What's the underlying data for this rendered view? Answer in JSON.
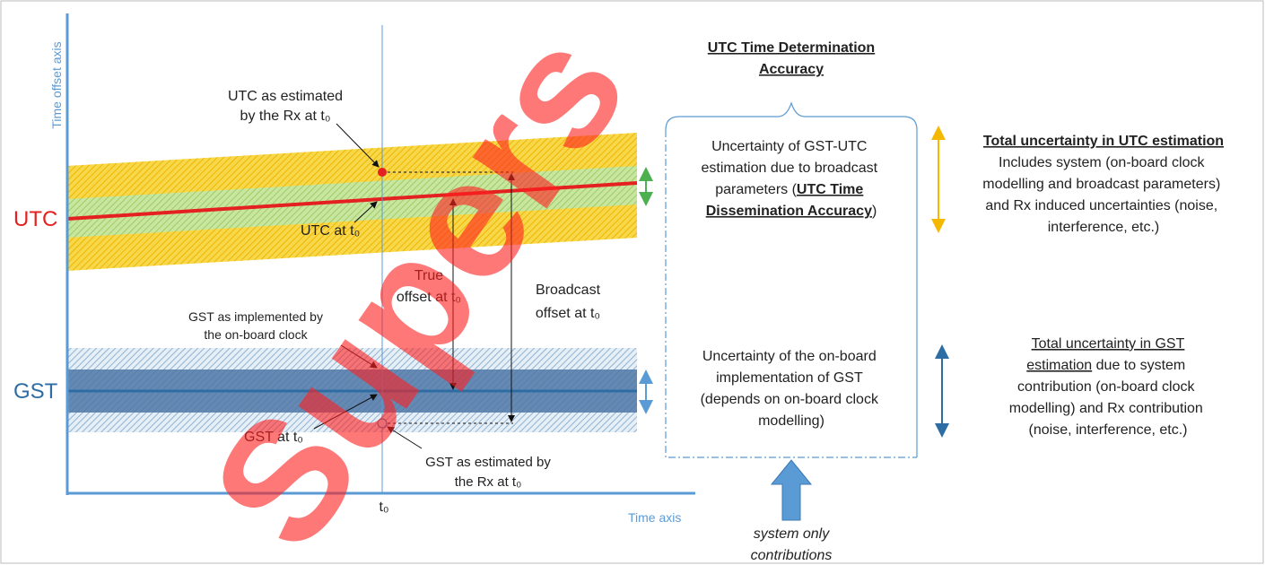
{
  "axes": {
    "y_label": "Time offset axis",
    "x_label": "Time axis",
    "t0": "t₀"
  },
  "scales": {
    "utc": "UTC",
    "gst": "GST"
  },
  "annotations": {
    "utc_estimated": [
      "UTC as estimated",
      "by the Rx at t₀"
    ],
    "utc_at_t0": "UTC at t₀",
    "true_offset": [
      "True",
      "offset at t₀"
    ],
    "broadcast_offset": [
      "Broadcast",
      "offset at t₀"
    ],
    "gst_implemented": [
      "GST as implemented by",
      "the on-board clock"
    ],
    "gst_at_t0": "GST at t₀",
    "gst_estimated": [
      "GST as estimated by",
      "the Rx at t₀"
    ]
  },
  "panel": {
    "title": [
      "UTC Time Determination",
      "Accuracy"
    ],
    "box_upper": [
      "Uncertainty of GST-UTC",
      "estimation due to broadcast",
      "parameters (",
      "UTC Time",
      "Dissemination Accuracy",
      ")"
    ],
    "box_lower": [
      "Uncertainty of the on-board",
      "implementation of GST",
      "(depends on on-board clock",
      "modelling)"
    ],
    "system_only": [
      "system only",
      "contributions"
    ]
  },
  "right": {
    "utc_title": "Total uncertainty in UTC estimation",
    "utc_lines": [
      "Includes system (on-board clock",
      "modelling and broadcast parameters)",
      "and Rx induced uncertainties (noise,",
      "interference, etc.)"
    ],
    "gst_title": "Total uncertainty in GST",
    "gst_lines": [
      "estimation",
      " due to system",
      "contribution (on-board clock",
      "modelling) and Rx contribution",
      "(noise, interference, etc.)"
    ]
  },
  "watermark": "Supers"
}
